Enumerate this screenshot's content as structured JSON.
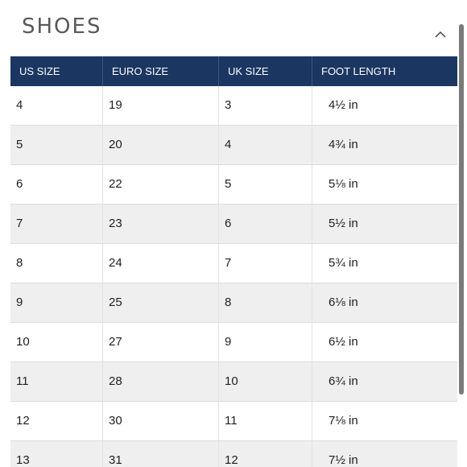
{
  "section": {
    "title": "SHOES",
    "toggle_icon": "chevron-up-icon"
  },
  "table": {
    "headers": [
      "US SIZE",
      "EURO SIZE",
      "UK SIZE",
      "FOOT LENGTH"
    ],
    "rows": [
      [
        "4",
        "19",
        "3",
        "4½ in"
      ],
      [
        "5",
        "20",
        "4",
        "4¾ in"
      ],
      [
        "6",
        "22",
        "5",
        "5⅛ in"
      ],
      [
        "7",
        "23",
        "6",
        "5½ in"
      ],
      [
        "8",
        "24",
        "7",
        "5¾ in"
      ],
      [
        "9",
        "25",
        "8",
        "6⅛ in"
      ],
      [
        "10",
        "27",
        "9",
        "6½ in"
      ],
      [
        "11",
        "28",
        "10",
        "6¾ in"
      ],
      [
        "12",
        "30",
        "11",
        "7⅛ in"
      ],
      [
        "13",
        "31",
        "12",
        "7½ in"
      ]
    ]
  },
  "colors": {
    "header_bg": "#1b3761",
    "row_alt_bg": "#efefef",
    "title_color": "#58585a"
  }
}
